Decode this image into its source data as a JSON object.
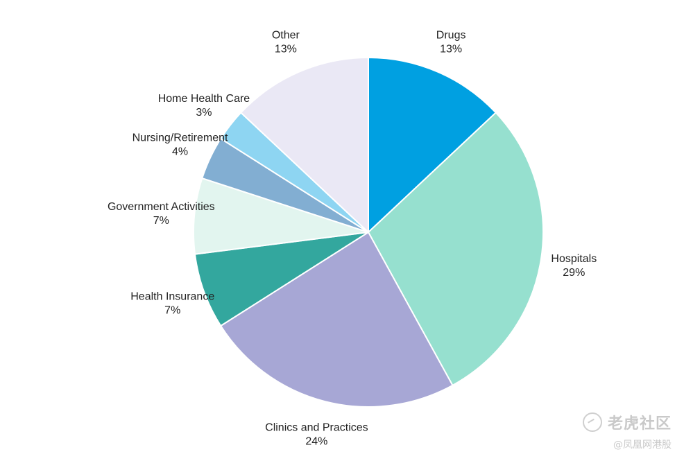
{
  "chart_data": {
    "type": "pie",
    "start_angle_deg": 0,
    "direction": "clockwise",
    "slices": [
      {
        "label": "Drugs",
        "value": 13,
        "value_text": "13%",
        "color": "#00A0E1"
      },
      {
        "label": "Hospitals",
        "value": 29,
        "value_text": "29%",
        "color": "#96E0CF"
      },
      {
        "label": "Clinics and Practices",
        "value": 24,
        "value_text": "24%",
        "color": "#A7A7D5"
      },
      {
        "label": "Health Insurance",
        "value": 7,
        "value_text": "7%",
        "color": "#33A79E"
      },
      {
        "label": "Government Activities",
        "value": 7,
        "value_text": "7%",
        "color": "#E2F5EF"
      },
      {
        "label": "Nursing/Retirement",
        "value": 4,
        "value_text": "4%",
        "color": "#82AED2"
      },
      {
        "label": "Home Health Care",
        "value": 3,
        "value_text": "3%",
        "color": "#8ED5F2"
      },
      {
        "label": "Other",
        "value": 13,
        "value_text": "13%",
        "color": "#EAE8F5"
      }
    ]
  },
  "watermark": {
    "line1": "老虎社区",
    "line2": "@凤凰网港股"
  }
}
